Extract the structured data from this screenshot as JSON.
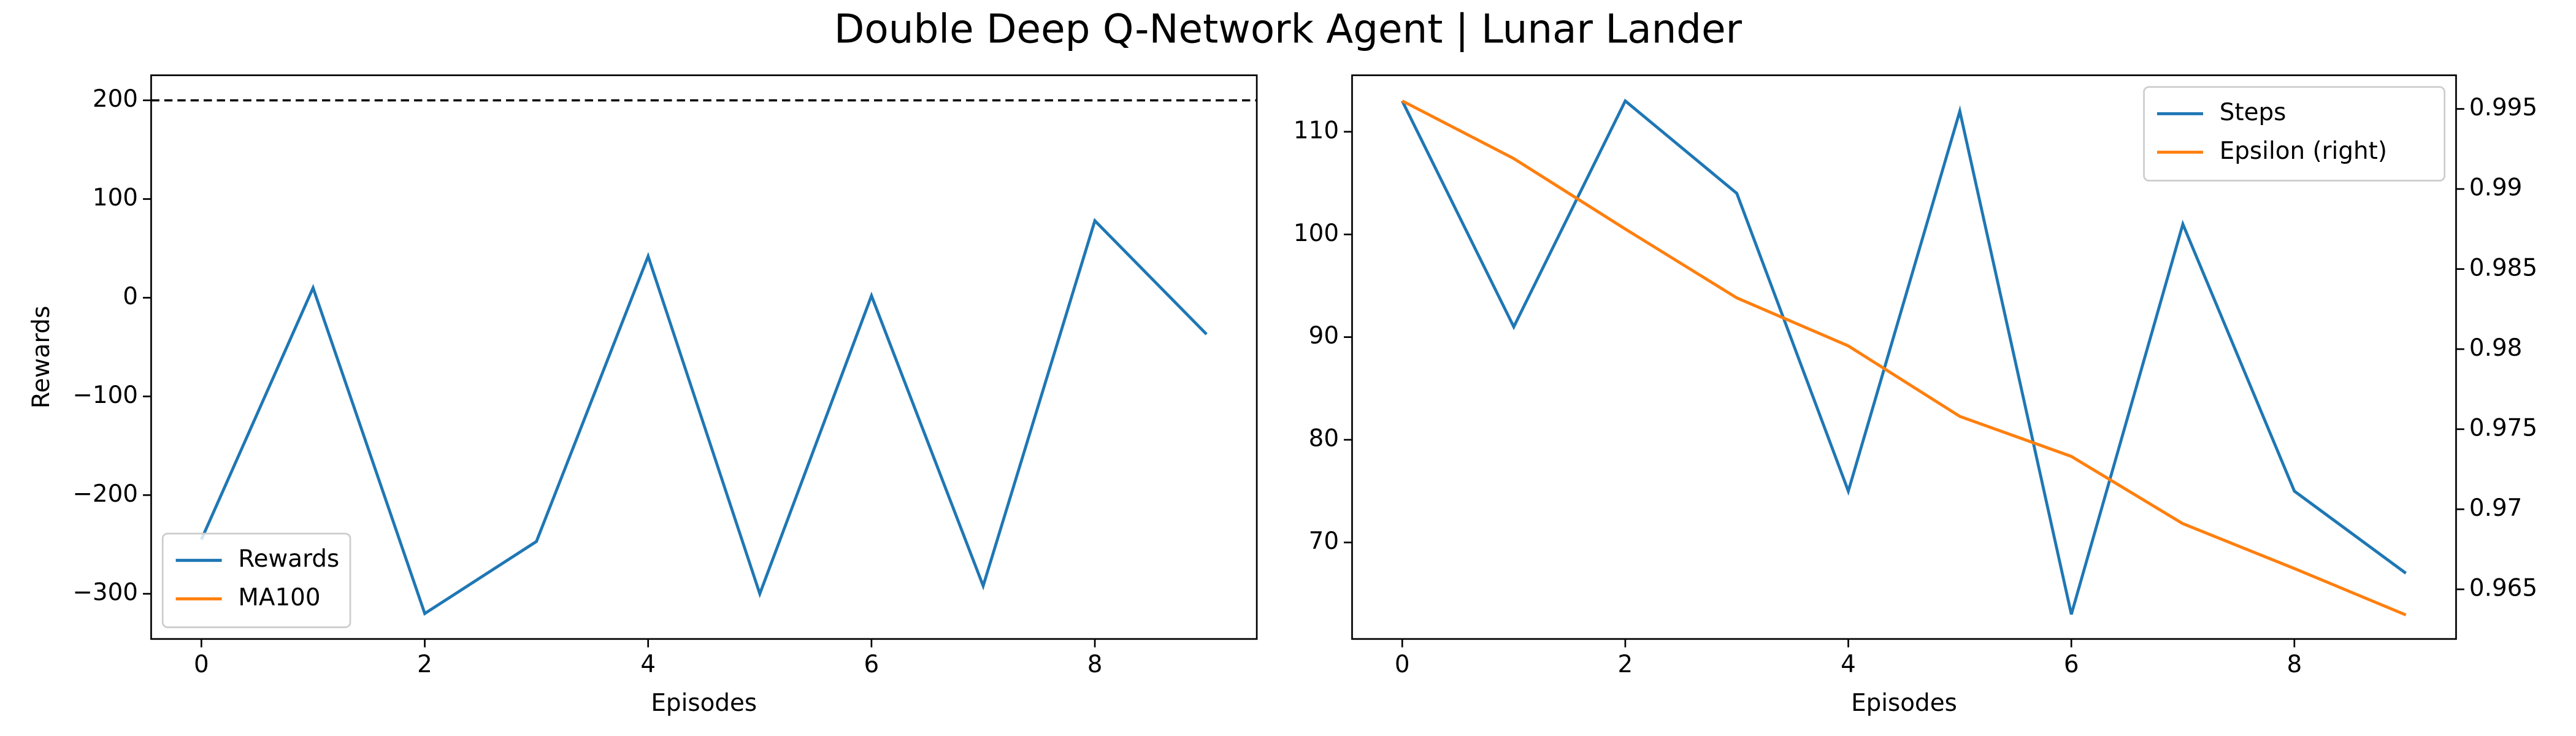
{
  "title": "Double Deep Q-Network Agent | Lunar Lander",
  "chart_data": [
    {
      "type": "line",
      "xlabel": "Episodes",
      "ylabel": "Rewards",
      "x": [
        0,
        1,
        2,
        3,
        4,
        5,
        6,
        7,
        8,
        9
      ],
      "xlim": [
        -0.45,
        9.45
      ],
      "xticks": [
        0,
        2,
        4,
        6,
        8
      ],
      "ylim": [
        -345.8,
        225.4
      ],
      "yticks": [
        {
          "value": -300,
          "label": "−300"
        },
        {
          "value": -200,
          "label": "−200"
        },
        {
          "value": -100,
          "label": "−100"
        },
        0,
        100,
        200
      ],
      "hline": 200,
      "legend": "lower left",
      "series": [
        {
          "name": "Rewards",
          "color": "#1f77b4",
          "values": [
            -245,
            10,
            -320,
            -247,
            42,
            -300,
            2,
            -292,
            78,
            -37
          ]
        },
        {
          "name": "MA100",
          "color": "#ff7f0e",
          "values": [
            null,
            null,
            null,
            null,
            null,
            null,
            null,
            null,
            null,
            null
          ]
        }
      ]
    },
    {
      "type": "line",
      "xlabel": "Episodes",
      "x": [
        0,
        1,
        2,
        3,
        4,
        5,
        6,
        7,
        8,
        9
      ],
      "xlim": [
        -0.45,
        9.45
      ],
      "xticks": [
        0,
        2,
        4,
        6,
        8
      ],
      "ylim": [
        60.6,
        115.5
      ],
      "yticks": [
        70,
        80,
        90,
        100,
        110
      ],
      "y2lim": [
        0.9619,
        0.9971
      ],
      "y2ticks": [
        0.965,
        0.97,
        0.975,
        0.98,
        0.985,
        0.99,
        0.995
      ],
      "legend": "upper right",
      "series": [
        {
          "name": "Steps",
          "color": "#1f77b4",
          "values": [
            113,
            91,
            113,
            104,
            75,
            112,
            63,
            101,
            75,
            67
          ]
        },
        {
          "name": "Epsilon (right)",
          "color": "#ff7f0e",
          "axis": "y2",
          "values": [
            0.9955,
            0.9919,
            0.9875,
            0.9832,
            0.9802,
            0.9758,
            0.9733,
            0.9691,
            0.9663,
            0.9634
          ]
        }
      ]
    }
  ]
}
